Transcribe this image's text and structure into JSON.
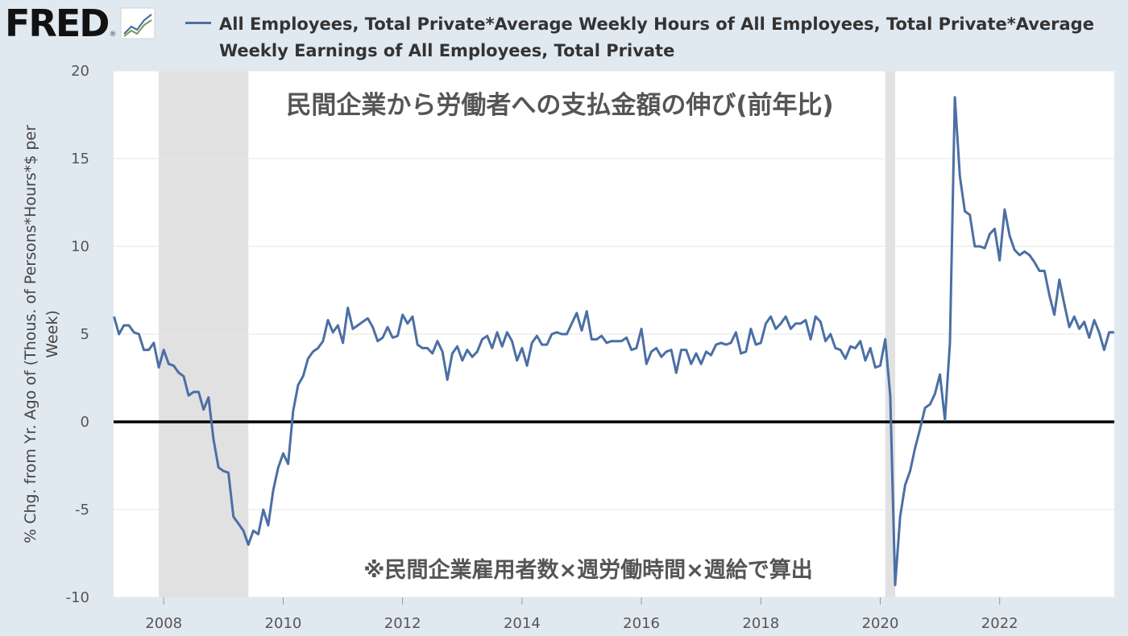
{
  "header": {
    "logo_text": "FRED",
    "logo_reg": "®",
    "logo_icon": "line-chart-icon",
    "legend_label": "All Employees, Total Private*Average Weekly Hours of All Employees, Total Private*Average Weekly Earnings of All Employees, Total Private"
  },
  "colors": {
    "background": "#e1e9f0",
    "plot": "#ffffff",
    "series": "#4b6fa5",
    "recession": "#e1e1e1",
    "zero_line": "#000000"
  },
  "chart_data": {
    "type": "line",
    "title": "民間企業から労働者への支払金額の伸び(前年比)",
    "note": "※民間企業雇用者数×週労働時間×週給で算出",
    "ylabel": "% Chg. from Yr. Ago of (Thous. of Persons*Hours*$ per Week)",
    "xlabel": "",
    "ylim": [
      -10,
      20
    ],
    "xlim": [
      2007.16,
      2023.92
    ],
    "yticks": [
      -10,
      -5,
      0,
      5,
      10,
      15,
      20
    ],
    "xticks": [
      "2008",
      "2010",
      "2012",
      "2014",
      "2016",
      "2018",
      "2020",
      "2022"
    ],
    "grid": "horizontal",
    "zero_line": true,
    "recessions": [
      {
        "start": "2007-12",
        "end": "2009-06"
      },
      {
        "start": "2020-02",
        "end": "2020-04"
      }
    ],
    "series": [
      {
        "name": "All Employees, Total Private*Average Weekly Hours of All Employees, Total Private*Average Weekly Earnings of All Employees, Total Private",
        "start": "2007-03",
        "frequency": "monthly",
        "values": [
          6.0,
          5.0,
          5.5,
          5.5,
          5.1,
          5.0,
          4.1,
          4.1,
          4.5,
          3.1,
          4.1,
          3.3,
          3.2,
          2.8,
          2.6,
          1.5,
          1.7,
          1.7,
          0.7,
          1.4,
          -1.0,
          -2.6,
          -2.8,
          -2.9,
          -5.4,
          -5.8,
          -6.2,
          -7.0,
          -6.2,
          -6.4,
          -5.0,
          -5.9,
          -3.9,
          -2.6,
          -1.8,
          -2.4,
          0.6,
          2.1,
          2.6,
          3.6,
          4.0,
          4.2,
          4.6,
          5.8,
          5.1,
          5.5,
          4.5,
          6.5,
          5.3,
          5.5,
          5.7,
          5.9,
          5.4,
          4.6,
          4.8,
          5.4,
          4.8,
          4.9,
          6.1,
          5.6,
          6.0,
          4.4,
          4.2,
          4.2,
          3.9,
          4.6,
          4.0,
          2.4,
          3.9,
          4.3,
          3.5,
          4.1,
          3.7,
          4.0,
          4.7,
          4.9,
          4.2,
          5.1,
          4.3,
          5.1,
          4.6,
          3.5,
          4.2,
          3.2,
          4.5,
          4.9,
          4.4,
          4.4,
          5.0,
          5.1,
          5.0,
          5.0,
          5.6,
          6.2,
          5.2,
          6.3,
          4.7,
          4.7,
          4.9,
          4.5,
          4.6,
          4.6,
          4.6,
          4.8,
          4.1,
          4.2,
          5.3,
          3.3,
          4.0,
          4.2,
          3.7,
          4.0,
          4.1,
          2.8,
          4.1,
          4.1,
          3.3,
          3.9,
          3.3,
          4.0,
          3.8,
          4.4,
          4.5,
          4.4,
          4.5,
          5.1,
          3.9,
          4.0,
          5.3,
          4.4,
          4.5,
          5.6,
          6.0,
          5.3,
          5.6,
          6.0,
          5.3,
          5.6,
          5.6,
          5.8,
          4.7,
          6.0,
          5.7,
          4.6,
          5.0,
          4.2,
          4.1,
          3.6,
          4.3,
          4.2,
          4.6,
          3.5,
          4.2,
          3.1,
          3.2,
          4.7,
          1.5,
          -9.3,
          -5.4,
          -3.6,
          -2.8,
          -1.5,
          -0.4,
          0.8,
          1.0,
          1.6,
          2.7,
          0.1,
          4.5,
          18.5,
          14.0,
          12.0,
          11.8,
          10.0,
          10.0,
          9.9,
          10.7,
          11.0,
          9.2,
          12.1,
          10.6,
          9.8,
          9.5,
          9.7,
          9.5,
          9.1,
          8.6,
          8.6,
          7.2,
          6.1,
          8.1,
          6.7,
          5.4,
          6.0,
          5.3,
          5.7,
          4.8,
          5.8,
          5.1,
          4.1,
          5.1,
          5.1
        ]
      }
    ]
  }
}
